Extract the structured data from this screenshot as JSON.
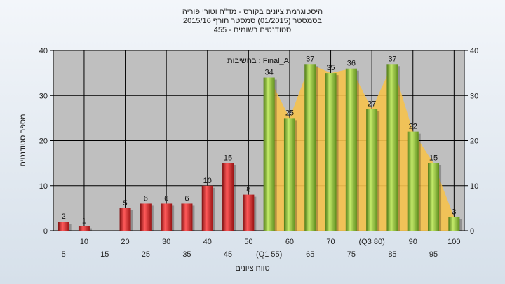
{
  "chart_data": {
    "type": "bar",
    "title_lines": [
      "היסטוגרמת ציונים בקורס - מד\"ח וטורי פוריה",
      "בסמסטר (01/2015) סמסטר חורף 2015/16",
      "סטודנטים רשומים - 455"
    ],
    "xlabel": "טווח ציונים",
    "ylabel": "מספר סטודנטים",
    "ylim": [
      0,
      40
    ],
    "yticks": [
      0,
      10,
      20,
      30,
      40
    ],
    "grid": true,
    "annotation": "בחשיבות : Final_A",
    "categories": [
      5,
      10,
      15,
      20,
      25,
      30,
      35,
      40,
      45,
      50,
      55,
      60,
      65,
      70,
      75,
      80,
      85,
      90,
      95,
      100
    ],
    "values": [
      2,
      1,
      0,
      5,
      6,
      6,
      6,
      10,
      15,
      8,
      34,
      25,
      37,
      35,
      36,
      27,
      37,
      22,
      15,
      3
    ],
    "value_labels": [
      "2",
      "1",
      "",
      "5",
      "6",
      "6",
      "6",
      "10",
      "15",
      "8",
      "34",
      "25",
      "37",
      "35",
      "36",
      "27",
      "37",
      "22",
      "15",
      "3"
    ],
    "x_tick_labels_top": [
      "10",
      "20",
      "30",
      "40",
      "50",
      "60",
      "70",
      "(Q3 80)",
      "90",
      "100"
    ],
    "x_tick_labels_bottom": [
      "5",
      "15",
      "25",
      "35",
      "45",
      "(Q1 55)",
      "65",
      "75",
      "85",
      "95"
    ],
    "fail_threshold": 55,
    "colors": {
      "fail_bar": "#d42a2a",
      "pass_bar": "#8fbe3a",
      "area": "#f5c24c",
      "plot_bg": "#bfbfbf",
      "grid": "#000000"
    }
  }
}
